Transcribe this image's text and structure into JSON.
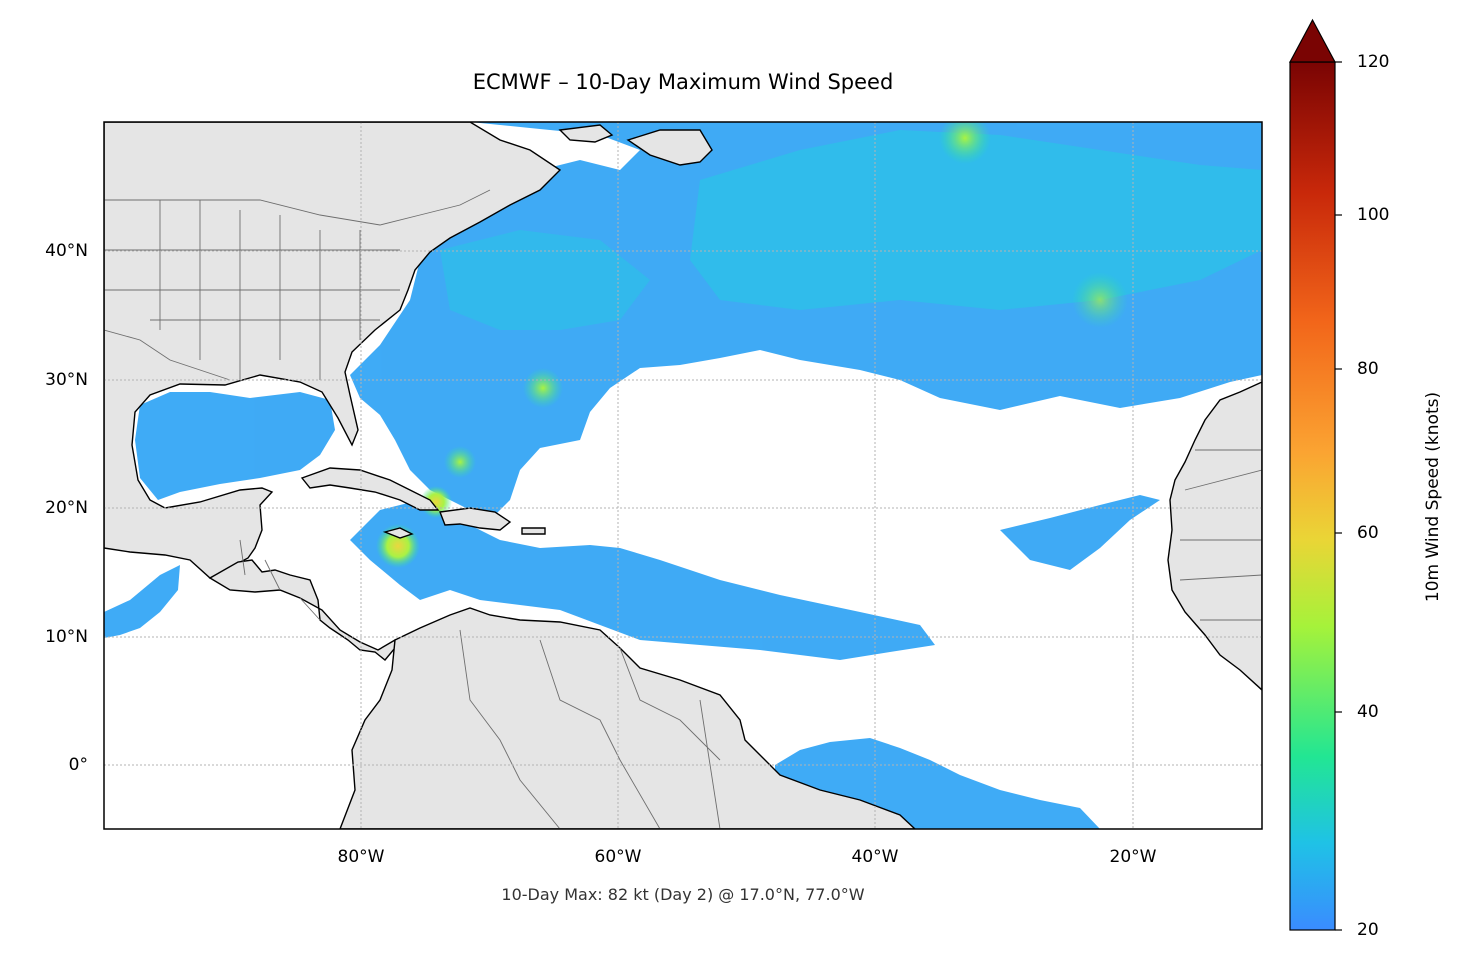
{
  "map": {
    "title": "ECMWF – 10-Day Maximum Wind Speed",
    "subtitle": "10-Day Max: 82 kt (Day 2) @ 17.0°N, 77.0°W",
    "lat_ticks": [
      "40°N",
      "30°N",
      "20°N",
      "10°N",
      "0°"
    ],
    "lon_ticks": [
      "80°W",
      "60°W",
      "40°W",
      "20°W"
    ],
    "colors": {
      "land": "#e5e5e5",
      "ocean_calm": "#ffffff",
      "coastline": "#000000",
      "borders": "#6e6e6e",
      "gridlines": "#b3b3b3"
    }
  },
  "colorbar": {
    "label": "10m Wind Speed (knots)",
    "ticks": [
      "120",
      "100",
      "80",
      "60",
      "40",
      "20"
    ],
    "min": 20,
    "max": 120,
    "extend": "max",
    "colormap": [
      "#3a8cff",
      "#1fc2e6",
      "#22e693",
      "#a6f23a",
      "#ead536",
      "#fba432",
      "#f2661a",
      "#c8280a",
      "#7a0403"
    ]
  },
  "chart_data": {
    "type": "heatmap",
    "title": "ECMWF – 10-Day Maximum Wind Speed",
    "variable": "10m Wind Speed (knots)",
    "xlim": [
      -100,
      -10
    ],
    "ylim": [
      -5,
      50
    ],
    "value_range": [
      20,
      120
    ],
    "max_point": {
      "value": 82,
      "day": 2,
      "lat": 17.0,
      "lon": -77.0
    },
    "hotspots": [
      {
        "lat": 17.0,
        "lon": -77.0,
        "value": 82
      },
      {
        "lat": 20.5,
        "lon": -74.0,
        "value": 62
      },
      {
        "lat": 23.5,
        "lon": -72.5,
        "value": 50
      },
      {
        "lat": 29.5,
        "lon": -66.0,
        "value": 52
      },
      {
        "lat": 47.0,
        "lon": -31.0,
        "value": 42
      }
    ]
  }
}
